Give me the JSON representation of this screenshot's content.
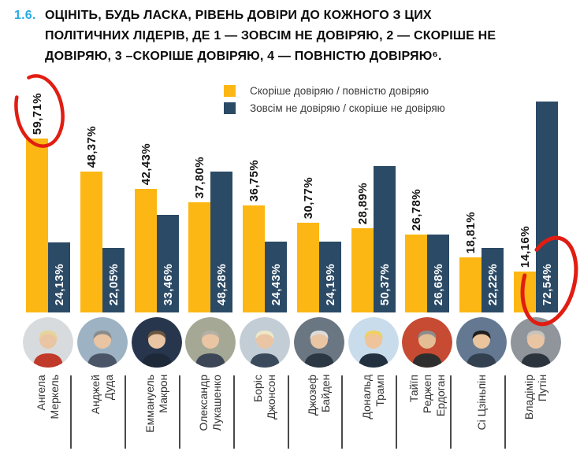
{
  "header": {
    "number": "1.6.",
    "number_color": "#29ABE2",
    "lines": [
      "ОЦІНІТЬ, БУДЬ ЛАСКА, РІВЕНЬ ДОВІРИ ДО КОЖНОГО З ЦИХ",
      "ПОЛІТИЧНИХ ЛІДЕРІВ, ДЕ 1 — ЗОВСІМ НЕ ДОВІРЯЮ, 2 — СКОРІШЕ НЕ",
      "ДОВІРЯЮ, 3 –СКОРІШЕ ДОВІРЯЮ, 4 — ПОВНІСТЮ ДОВІРЯЮ⁶."
    ]
  },
  "legend": {
    "items": [
      {
        "label": "Скоріше довіряю / повністю довіряю",
        "color": "#FDB714"
      },
      {
        "label": "Зовсім не довіряю / скоріше не довіряю",
        "color": "#2B4A66"
      }
    ]
  },
  "chart_data": {
    "type": "bar",
    "title": "Рівень довіри до політичних лідерів",
    "categories": [
      "Ангела Меркель",
      "Анджей Дуда",
      "Еммануель Макрон",
      "Олександр Лукашенко",
      "Боріс Джонсон",
      "Джозеф Байден",
      "Дональд Трамп",
      "Тайїп Реджеп Ердоган",
      "Сі Цзіньпін",
      "Владімір Путін"
    ],
    "series": [
      {
        "name": "Скоріше довіряю / повністю довіряю",
        "color": "#FDB714",
        "values": [
          59.71,
          48.37,
          42.43,
          37.8,
          36.75,
          30.77,
          28.89,
          26.78,
          18.81,
          14.16
        ],
        "labels": [
          "59,71%",
          "48,37%",
          "42,43%",
          "37,80%",
          "36,75%",
          "30,77%",
          "28,89%",
          "26,78%",
          "18,81%",
          "14,16%"
        ]
      },
      {
        "name": "Зовсім не довіряю / скоріше не довіряю",
        "color": "#2B4A66",
        "values": [
          24.13,
          22.05,
          33.46,
          48.28,
          24.43,
          24.19,
          50.37,
          26.68,
          22.22,
          72.54
        ],
        "labels": [
          "24,13%",
          "22,05%",
          "33,46%",
          "48,28%",
          "24,43%",
          "24,19%",
          "50,37%",
          "26,68%",
          "22,22%",
          "72,54%"
        ]
      }
    ],
    "ylim": [
      0,
      80
    ],
    "grid": false,
    "legend_position": "top",
    "annotations": [
      {
        "shape": "hand-drawn-ellipse",
        "color": "#E11D12",
        "label": "59,71%",
        "category": "Ангела Меркель",
        "series": "Скоріше довіряю / повністю довіряю"
      },
      {
        "shape": "hand-drawn-ellipse",
        "color": "#E11D12",
        "label": "72,54%",
        "category": "Владімір Путін",
        "series": "Зовсім не довіряю / скоріше не довіряю"
      }
    ]
  },
  "leaders": [
    {
      "id": "merkel",
      "name_lines": [
        "Ангела",
        "Меркель"
      ],
      "photo": {
        "bg": "#d8dbdd",
        "hair": "#e6d49a",
        "skin": "#eac5a4",
        "suit": "#c0392b"
      }
    },
    {
      "id": "duda",
      "name_lines": [
        "Анджей",
        "Дуда"
      ],
      "photo": {
        "bg": "#9db3c4",
        "hair": "#8b8b8b",
        "skin": "#eac5a4",
        "suit": "#4a5568"
      }
    },
    {
      "id": "macron",
      "name_lines": [
        "Еммануель",
        "Макрон"
      ],
      "photo": {
        "bg": "#27364d",
        "hair": "#6b5640",
        "skin": "#eac5a4",
        "suit": "#1d2838"
      }
    },
    {
      "id": "lukashenko",
      "name_lines": [
        "Олександр",
        "Лукашенко"
      ],
      "photo": {
        "bg": "#a4a894",
        "hair": "#b5b0a4",
        "skin": "#eac5a4",
        "suit": "#3d4657"
      }
    },
    {
      "id": "johnson",
      "name_lines": [
        "Боріс",
        "Джонсон"
      ],
      "photo": {
        "bg": "#c3cdd6",
        "hair": "#eee8c8",
        "skin": "#eac5a4",
        "suit": "#3a4a5c"
      }
    },
    {
      "id": "biden",
      "name_lines": [
        "Джозеф",
        "Байден"
      ],
      "photo": {
        "bg": "#6a7682",
        "hair": "#dcdcdc",
        "skin": "#eac5a4",
        "suit": "#2c3744"
      }
    },
    {
      "id": "trump",
      "name_lines": [
        "Дональд",
        "Трамп"
      ],
      "photo": {
        "bg": "#c9dcec",
        "hair": "#f0d060",
        "skin": "#efc49a",
        "suit": "#22303f"
      }
    },
    {
      "id": "erdogan",
      "name_lines": [
        "Тайїп",
        "Реджеп",
        "Ердоган"
      ],
      "photo": {
        "bg": "#c74a32",
        "hair": "#8c8c8c",
        "skin": "#e5bd95",
        "suit": "#2e2e2e"
      }
    },
    {
      "id": "xi",
      "name_lines": [
        "Сі Цзіньпін"
      ],
      "photo": {
        "bg": "#647891",
        "hair": "#1e1e1e",
        "skin": "#e9c49c",
        "suit": "#32404f"
      }
    },
    {
      "id": "putin",
      "name_lines": [
        "Владімір",
        "Путін"
      ],
      "photo": {
        "bg": "#8f959b",
        "hair": "#c8c4bc",
        "skin": "#eac5a4",
        "suit": "#2b333c"
      }
    }
  ]
}
